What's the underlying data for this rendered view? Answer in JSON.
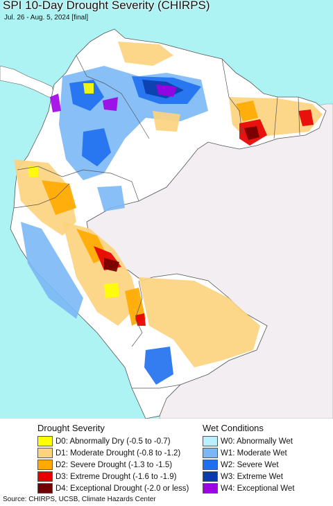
{
  "title": "SPI 10-Day Drought Severity (CHIRPS)",
  "subtitle": "Jul. 26 - Aug. 5, 2024 [final]",
  "source": "Source: CHIRPS, UCSB, Climate Hazards Center",
  "colors": {
    "ocean": "#aef3f3",
    "outside_land": "#f2eef2",
    "country_base": "#ffffff",
    "border": "#555555"
  },
  "legend": {
    "drought_heading": "Drought Severity",
    "wet_heading": "Wet Conditions",
    "drought": [
      {
        "label": "D0: Abnormally Dry (-0.5 to -0.7)",
        "color": "#ffff00"
      },
      {
        "label": "D1: Moderate Drought (-0.8 to -1.2)",
        "color": "#fcd37f"
      },
      {
        "label": "D2: Severe Drought (-1.3 to -1.5)",
        "color": "#ffaa00"
      },
      {
        "label": "D3: Extreme Drought (-1.6 to -1.9)",
        "color": "#e60000"
      },
      {
        "label": "D4: Exceptional Drought (-2.0 or less)",
        "color": "#730000"
      }
    ],
    "wet": [
      {
        "label": "W0: Abnormally Wet",
        "color": "#b9f0ff"
      },
      {
        "label": "W1: Moderate Wet",
        "color": "#7ab8f5"
      },
      {
        "label": "W2: Severe Wet",
        "color": "#1e6ff0"
      },
      {
        "label": "W3: Extreme Wet",
        "color": "#0a3ca8"
      },
      {
        "label": "W4: Exceptional Wet",
        "color": "#a000e6"
      }
    ]
  }
}
